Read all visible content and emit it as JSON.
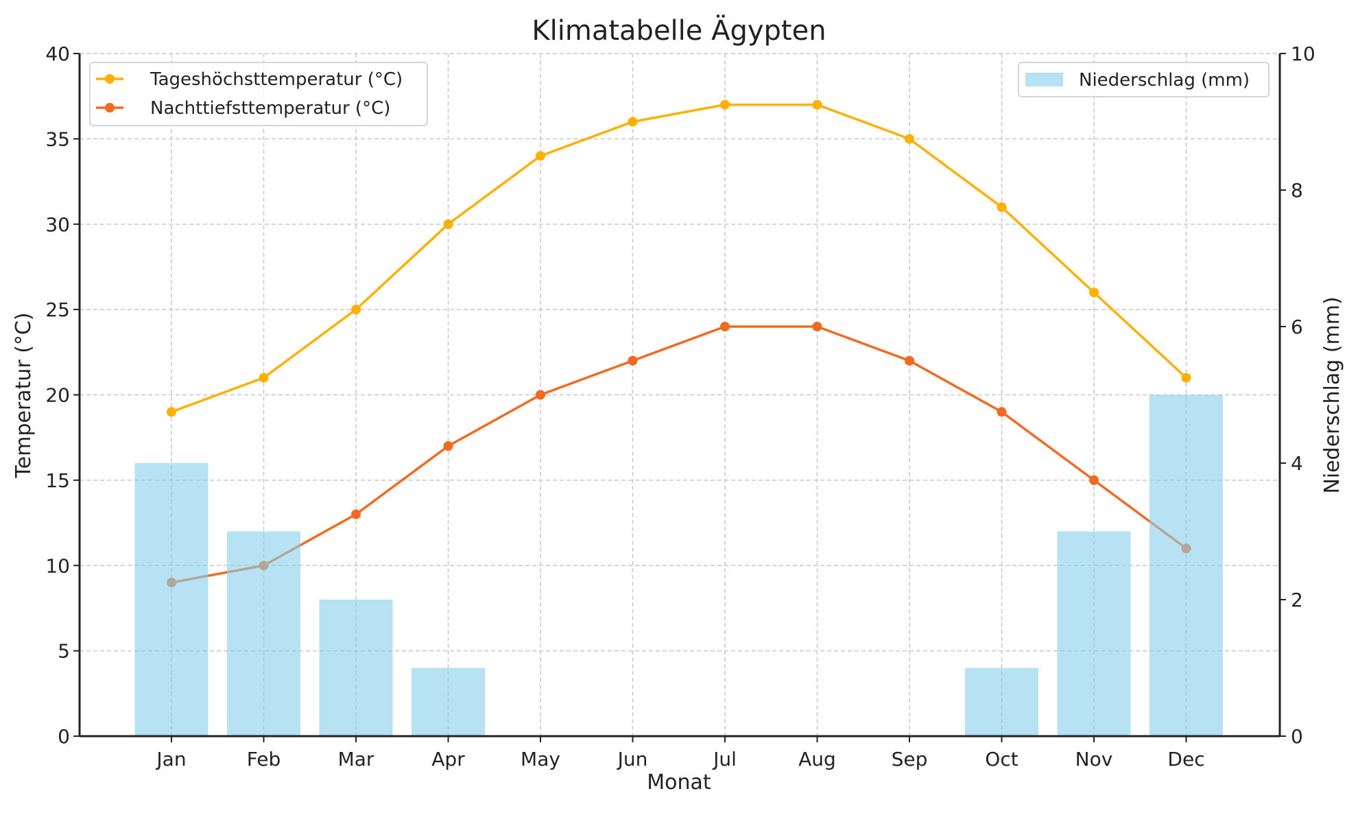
{
  "chart_data": {
    "type": "bar+line",
    "title": "Klimatabelle Ägypten",
    "xlabel": "Monat",
    "ylabel": "Temperatur (°C)",
    "ylabel_right": "Niederschlag (mm)",
    "categories": [
      "Jan",
      "Feb",
      "Mar",
      "Apr",
      "May",
      "Jun",
      "Jul",
      "Aug",
      "Sep",
      "Oct",
      "Nov",
      "Dec"
    ],
    "ylim": [
      0,
      40
    ],
    "ylim_right": [
      0,
      10
    ],
    "yticks": [
      "0",
      "5",
      "10",
      "15",
      "20",
      "25",
      "30",
      "35",
      "40"
    ],
    "yticks_right": [
      "0",
      "2",
      "4",
      "6",
      "8",
      "10"
    ],
    "grid": true,
    "series": [
      {
        "name": "Tageshöchsttemperatur (°C)",
        "type": "line",
        "axis": "left",
        "color": "#FFB000",
        "values": [
          19,
          21,
          25,
          30,
          34,
          36,
          37,
          37,
          35,
          31,
          26,
          21
        ]
      },
      {
        "name": "Nachttiefsttemperatur (°C)",
        "type": "line",
        "axis": "left",
        "color": "#F26A21",
        "values": [
          9,
          10,
          13,
          17,
          20,
          22,
          24,
          24,
          22,
          19,
          15,
          11
        ]
      },
      {
        "name": "Niederschlag (mm)",
        "type": "bar",
        "axis": "right",
        "color": "#87CEEB",
        "values": [
          4,
          3,
          2,
          1,
          0,
          0,
          0,
          0,
          0,
          1,
          3,
          5
        ]
      }
    ],
    "legend_left": "top-left",
    "legend_right": "top-right"
  }
}
